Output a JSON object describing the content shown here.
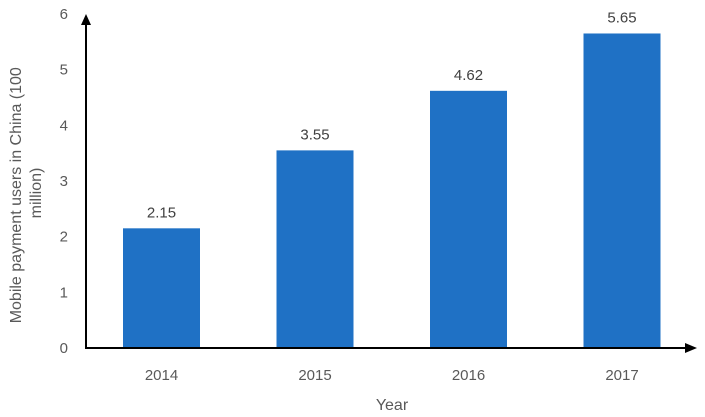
{
  "chart_data": {
    "type": "bar",
    "categories": [
      "2014",
      "2015",
      "2016",
      "2017"
    ],
    "values": [
      2.15,
      3.55,
      4.62,
      5.65
    ],
    "data_labels": [
      "2.15",
      "3.55",
      "4.62",
      "5.65"
    ],
    "xlabel": "Year",
    "ylabel_lines": [
      "Mobile payment users in China (100",
      "million)"
    ],
    "ylim": [
      0,
      6
    ],
    "yticks": [
      "0",
      "1",
      "2",
      "3",
      "4",
      "5",
      "6"
    ],
    "grid": false,
    "legend": "none",
    "bar_color": "#1F71C5",
    "axis_color": "#000000"
  }
}
